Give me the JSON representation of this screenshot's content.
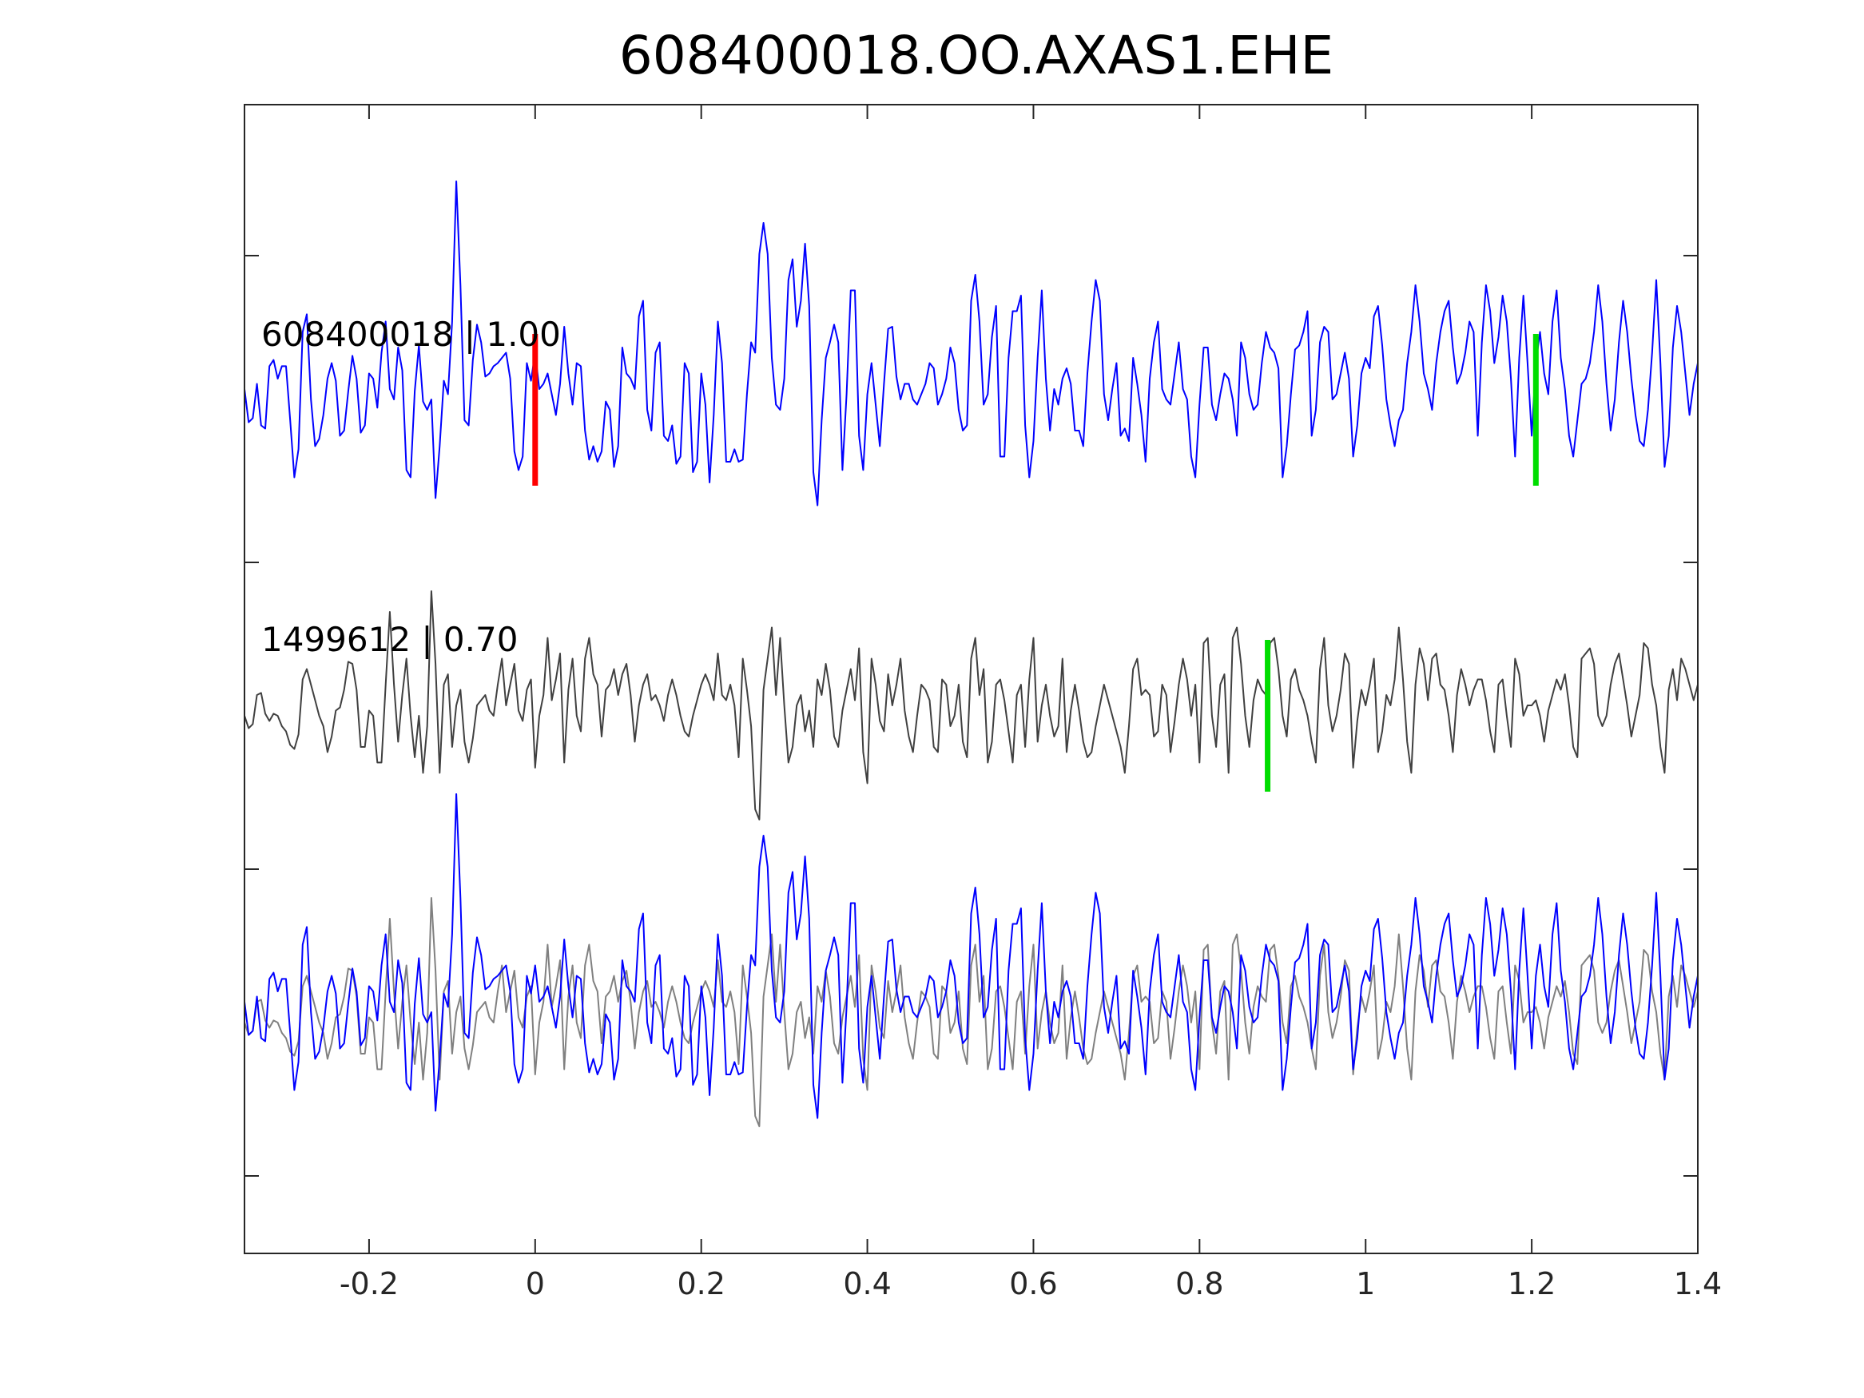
{
  "chart_data": {
    "type": "line",
    "title": "608400018.OO.AXAS1.EHE",
    "xlabel": "",
    "ylabel": "",
    "xlim": [
      -0.35,
      1.4
    ],
    "x_ticks": [
      -0.2,
      0,
      0.2,
      0.4,
      0.6,
      0.8,
      1,
      1.2,
      1.4
    ],
    "x_tick_labels": [
      "-0.2",
      "0",
      "0.2",
      "0.4",
      "0.6",
      "0.8",
      "1",
      "1.2",
      "1.4"
    ],
    "y_tick_labels_shown": false,
    "grid": false,
    "panels": [
      {
        "label": "608400018 | 1.00",
        "series": [
          {
            "color": "#0000ff",
            "x_start": -0.35,
            "x_step": 0.005,
            "values": [
              0.2,
              -0.12,
              -0.08,
              0.25,
              -0.15,
              -0.18,
              0.42,
              0.48,
              0.3,
              0.42,
              0.42,
              -0.1,
              -0.65,
              -0.38,
              0.75,
              0.92,
              0.1,
              -0.35,
              -0.28,
              -0.05,
              0.3,
              0.45,
              0.28,
              -0.25,
              -0.2,
              0.18,
              0.52,
              0.3,
              -0.22,
              -0.15,
              0.35,
              0.3,
              0.02,
              0.55,
              0.85,
              0.2,
              0.1,
              0.6,
              0.38,
              -0.58,
              -0.65,
              0.18,
              0.62,
              0.08,
              0.0,
              0.1,
              -0.85,
              -0.35,
              0.28,
              0.15,
              0.85,
              2.2,
              1.2,
              -0.1,
              -0.15,
              0.48,
              0.82,
              0.65,
              0.32,
              0.35,
              0.42,
              0.45,
              0.5,
              0.55,
              0.3,
              -0.4,
              -0.58,
              -0.45,
              0.45,
              0.28,
              0.55,
              0.2,
              0.25,
              0.35,
              0.15,
              -0.05,
              0.25,
              0.8,
              0.35,
              0.05,
              0.45,
              0.42,
              -0.2,
              -0.48,
              -0.35,
              -0.5,
              -0.4,
              0.08,
              0.0,
              -0.55,
              -0.35,
              0.6,
              0.35,
              0.3,
              0.2,
              0.9,
              1.05,
              0.0,
              -0.2,
              0.55,
              0.65,
              -0.25,
              -0.3,
              -0.15,
              -0.52,
              -0.45,
              0.45,
              0.35,
              -0.6,
              -0.5,
              0.35,
              0.05,
              -0.7,
              -0.05,
              0.85,
              0.45,
              -0.5,
              -0.5,
              -0.38,
              -0.5,
              -0.48,
              0.15,
              0.65,
              0.55,
              1.5,
              1.8,
              1.5,
              0.5,
              0.05,
              0.0,
              0.3,
              1.25,
              1.45,
              0.8,
              1.05,
              1.6,
              1.0,
              -0.6,
              -0.92,
              -0.1,
              0.5,
              0.65,
              0.82,
              0.65,
              -0.58,
              0.15,
              1.15,
              1.15,
              -0.25,
              -0.58,
              0.15,
              0.45,
              0.05,
              -0.35,
              0.25,
              0.78,
              0.8,
              0.32,
              0.1,
              0.25,
              0.25,
              0.1,
              0.05,
              0.15,
              0.25,
              0.45,
              0.4,
              0.05,
              0.15,
              0.3,
              0.6,
              0.45,
              0.0,
              -0.2,
              -0.15,
              1.05,
              1.3,
              0.85,
              0.05,
              0.15,
              0.7,
              1.0,
              -0.45,
              -0.45,
              0.5,
              0.95,
              0.95,
              1.1,
              -0.15,
              -0.65,
              -0.3,
              0.5,
              1.15,
              0.3,
              -0.2,
              0.2,
              0.05,
              0.3,
              0.4,
              0.25,
              -0.2,
              -0.2,
              -0.35,
              0.35,
              0.85,
              1.25,
              1.05,
              0.15,
              -0.1,
              0.2,
              0.45,
              -0.25,
              -0.18,
              -0.3,
              0.5,
              0.25,
              -0.05,
              -0.5,
              0.3,
              0.65,
              0.85,
              0.2,
              0.1,
              0.05,
              0.35,
              0.65,
              0.2,
              0.1,
              -0.45,
              -0.65,
              0.05,
              0.6,
              0.6,
              0.05,
              -0.1,
              0.15,
              0.35,
              0.3,
              0.1,
              -0.25,
              0.65,
              0.5,
              0.15,
              0.0,
              0.05,
              0.45,
              0.75,
              0.6,
              0.55,
              0.4,
              -0.65,
              -0.35,
              0.15,
              0.58,
              0.62,
              0.75,
              0.95,
              -0.25,
              0.0,
              0.65,
              0.8,
              0.75,
              0.1,
              0.15,
              0.35,
              0.55,
              0.3,
              -0.45,
              -0.15,
              0.35,
              0.5,
              0.4,
              0.9,
              1.0,
              0.62,
              0.1,
              -0.15,
              -0.35,
              -0.1,
              0.0,
              0.45,
              0.75,
              1.2,
              0.85,
              0.35,
              0.2,
              0.0,
              0.45,
              0.75,
              0.95,
              1.05,
              0.6,
              0.25,
              0.35,
              0.55,
              0.85,
              0.75,
              -0.25,
              0.65,
              1.2,
              0.95,
              0.45,
              0.7,
              1.1,
              0.85,
              0.3,
              -0.45,
              0.5,
              1.1,
              0.45,
              -0.25,
              0.45,
              0.75,
              0.35,
              0.15,
              0.85,
              1.15,
              0.5,
              0.2,
              -0.25,
              -0.45,
              -0.1,
              0.25,
              0.3,
              0.45,
              0.75,
              1.2,
              0.85,
              0.25,
              -0.2,
              0.1,
              0.65,
              1.05,
              0.75,
              0.3,
              -0.05,
              -0.3,
              -0.35,
              0.0,
              0.55,
              1.25,
              0.45,
              -0.55,
              -0.25,
              0.6,
              1.0,
              0.75,
              0.35,
              -0.05,
              0.25,
              0.45,
              0.65,
              -0.4,
              -0.85,
              0.05,
              0.45,
              0.65,
              0.45,
              -0.5,
              -0.35,
              0.2,
              0.65,
              0.75,
              0.2,
              -0.2,
              -0.35,
              0.45,
              0.25,
              0.0,
              0.15,
              0.4,
              0.25,
              0.1,
              -0.45,
              -0.35,
              0.05,
              0.75,
              1.05,
              0.25,
              -0.2
            ]
          }
        ],
        "markers": [
          {
            "x": 0.0,
            "color": "#ff0000"
          },
          {
            "x": 1.205,
            "color": "#00dd00"
          }
        ]
      },
      {
        "label": "1499612 | 0.70",
        "series": [
          {
            "color": "#404040",
            "x_start": -0.35,
            "x_step": 0.005,
            "values": [
              0.0,
              -0.12,
              -0.08,
              0.2,
              0.22,
              0.02,
              -0.05,
              0.02,
              0.0,
              -0.1,
              -0.15,
              -0.28,
              -0.32,
              -0.18,
              0.35,
              0.45,
              0.3,
              0.15,
              0.0,
              -0.1,
              -0.35,
              -0.2,
              0.05,
              0.08,
              0.25,
              0.52,
              0.5,
              0.25,
              -0.3,
              -0.3,
              0.05,
              0.0,
              -0.45,
              -0.45,
              0.3,
              1.0,
              0.3,
              -0.25,
              0.2,
              0.55,
              0.0,
              -0.4,
              0.0,
              -0.55,
              -0.1,
              1.2,
              0.5,
              -0.55,
              0.3,
              0.4,
              -0.3,
              0.1,
              0.25,
              -0.25,
              -0.45,
              -0.22,
              0.1,
              0.15,
              0.2,
              0.05,
              0.0,
              0.3,
              0.55,
              0.1,
              0.3,
              0.5,
              0.05,
              -0.05,
              0.25,
              0.35,
              -0.5,
              0.0,
              0.2,
              0.75,
              0.15,
              0.35,
              0.6,
              -0.45,
              0.25,
              0.55,
              0.0,
              -0.15,
              0.55,
              0.75,
              0.4,
              0.3,
              -0.2,
              0.25,
              0.3,
              0.45,
              0.2,
              0.4,
              0.5,
              0.2,
              -0.25,
              0.1,
              0.3,
              0.4,
              0.15,
              0.2,
              0.1,
              -0.05,
              0.2,
              0.35,
              0.2,
              0.0,
              -0.15,
              -0.2,
              0.0,
              0.15,
              0.3,
              0.4,
              0.3,
              0.15,
              0.6,
              0.2,
              0.15,
              0.3,
              0.1,
              -0.4,
              0.55,
              0.25,
              -0.1,
              -0.9,
              -1.0,
              0.25,
              0.55,
              0.85,
              0.2,
              0.75,
              0.1,
              -0.45,
              -0.3,
              0.1,
              0.2,
              -0.15,
              0.05,
              -0.3,
              0.35,
              0.2,
              0.5,
              0.25,
              -0.2,
              -0.3,
              0.05,
              0.25,
              0.45,
              0.15,
              0.65,
              -0.35,
              -0.65,
              0.55,
              0.3,
              -0.05,
              -0.15,
              0.4,
              0.1,
              0.3,
              0.55,
              0.05,
              -0.2,
              -0.35,
              0.0,
              0.3,
              0.25,
              0.15,
              -0.3,
              -0.35,
              0.35,
              0.3,
              -0.1,
              0.0,
              0.3,
              -0.25,
              -0.4,
              0.55,
              0.75,
              0.2,
              0.45,
              -0.45,
              -0.25,
              0.3,
              0.35,
              0.15,
              -0.15,
              -0.45,
              0.2,
              0.3,
              -0.3,
              0.35,
              0.75,
              -0.25,
              0.1,
              0.3,
              0.0,
              -0.2,
              -0.1,
              0.55,
              -0.35,
              0.05,
              0.3,
              0.05,
              -0.25,
              -0.4,
              -0.35,
              -0.1,
              0.1,
              0.3,
              0.15,
              0.0,
              -0.15,
              -0.3,
              -0.55,
              -0.1,
              0.45,
              0.55,
              0.2,
              0.25,
              0.2,
              -0.2,
              -0.15,
              0.3,
              0.2,
              -0.35,
              -0.05,
              0.3,
              0.55,
              0.35,
              0.0,
              0.3,
              -0.45,
              0.7,
              0.75,
              0.0,
              -0.3,
              0.3,
              0.4,
              -0.55,
              0.75,
              0.85,
              0.5,
              0.0,
              -0.3,
              0.15,
              0.35,
              0.25,
              0.2,
              0.7,
              0.75,
              0.45,
              0.0,
              -0.2,
              0.35,
              0.45,
              0.25,
              0.15,
              0.0,
              -0.25,
              -0.45,
              0.45,
              0.75,
              0.1,
              -0.15,
              0.0,
              0.25,
              0.6,
              0.5,
              -0.5,
              -0.05,
              0.25,
              0.1,
              0.3,
              0.55,
              -0.35,
              -0.15,
              0.2,
              0.1,
              0.35,
              0.85,
              0.35,
              -0.25,
              -0.55,
              0.3,
              0.65,
              0.5,
              0.15,
              0.55,
              0.6,
              0.3,
              0.25,
              0.0,
              -0.35,
              0.2,
              0.45,
              0.3,
              0.1,
              0.25,
              0.35,
              0.35,
              0.15,
              -0.15,
              -0.35,
              0.3,
              0.35,
              0.0,
              -0.3,
              0.55,
              0.4,
              0.0,
              0.1,
              0.1,
              0.15,
              0.0,
              -0.25,
              0.05,
              0.2,
              0.35,
              0.25,
              0.4,
              0.1,
              -0.3,
              -0.4,
              0.55,
              0.6,
              0.65,
              0.5,
              0.0,
              -0.1,
              0.0,
              0.3,
              0.5,
              0.6,
              0.35,
              0.1,
              -0.2,
              0.0,
              0.2,
              0.7,
              0.65,
              0.3,
              0.1,
              -0.3,
              -0.55,
              0.25,
              0.45,
              0.15,
              0.55,
              0.45,
              0.3,
              0.15,
              0.3,
              0.25,
              0.0,
              -0.35,
              -0.45,
              0.2,
              0.35,
              0.3,
              0.25,
              0.0,
              -0.1
            ]
          }
        ],
        "markers": [
          {
            "x": 0.882,
            "color": "#00dd00"
          }
        ]
      },
      {
        "label": "",
        "series": [
          {
            "color": "#808080",
            "same_as_panel": 1
          },
          {
            "color": "#0000ff",
            "same_as_panel": 0
          }
        ],
        "markers": []
      }
    ]
  }
}
